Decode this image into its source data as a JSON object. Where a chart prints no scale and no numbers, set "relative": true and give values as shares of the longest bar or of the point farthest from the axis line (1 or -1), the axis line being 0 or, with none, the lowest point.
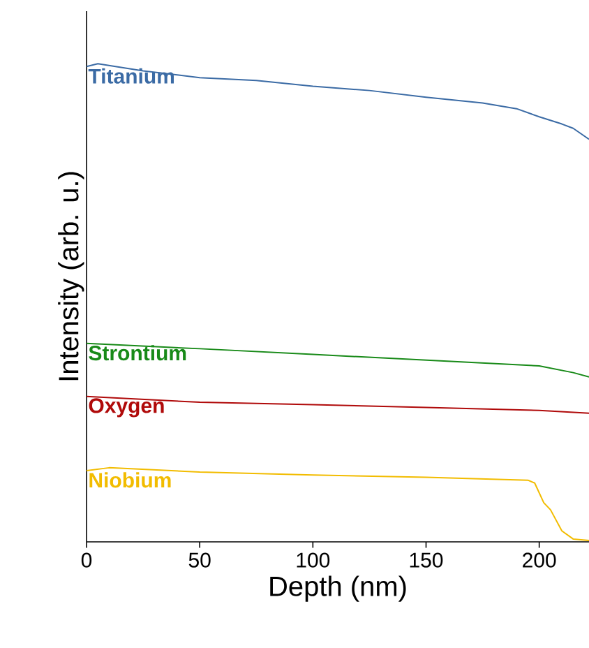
{
  "chart_data": {
    "type": "line",
    "relative": true,
    "xlabel": "Depth (nm)",
    "ylabel": "Intensity (arb. u.)",
    "xlim": [
      0,
      222
    ],
    "xticks": [
      0,
      50,
      100,
      150,
      200
    ],
    "tick_labels": "x",
    "marker": "none",
    "line_style": "solid",
    "series": [
      {
        "name": "Titanium",
        "color": "#3b6ba5",
        "x": [
          0,
          5,
          25,
          50,
          75,
          100,
          125,
          150,
          175,
          190,
          200,
          210,
          215,
          222
        ],
        "values": [
          0.994,
          1.0,
          0.985,
          0.971,
          0.965,
          0.953,
          0.944,
          0.93,
          0.918,
          0.906,
          0.889,
          0.874,
          0.865,
          0.842
        ]
      },
      {
        "name": "Strontium",
        "color": "#188a18",
        "x": [
          0,
          50,
          100,
          150,
          200,
          215,
          222
        ],
        "values": [
          0.415,
          0.404,
          0.392,
          0.38,
          0.368,
          0.354,
          0.345
        ]
      },
      {
        "name": "Oxygen",
        "color": "#b00a0a",
        "x": [
          0,
          50,
          100,
          150,
          200,
          222
        ],
        "values": [
          0.304,
          0.292,
          0.287,
          0.281,
          0.275,
          0.269
        ]
      },
      {
        "name": "Niobium",
        "color": "#f2bc00",
        "x": [
          0,
          10,
          50,
          100,
          150,
          195,
          198,
          202,
          205,
          210,
          215,
          222
        ],
        "values": [
          0.149,
          0.155,
          0.146,
          0.14,
          0.135,
          0.129,
          0.123,
          0.082,
          0.067,
          0.023,
          0.006,
          0.003
        ]
      }
    ]
  }
}
